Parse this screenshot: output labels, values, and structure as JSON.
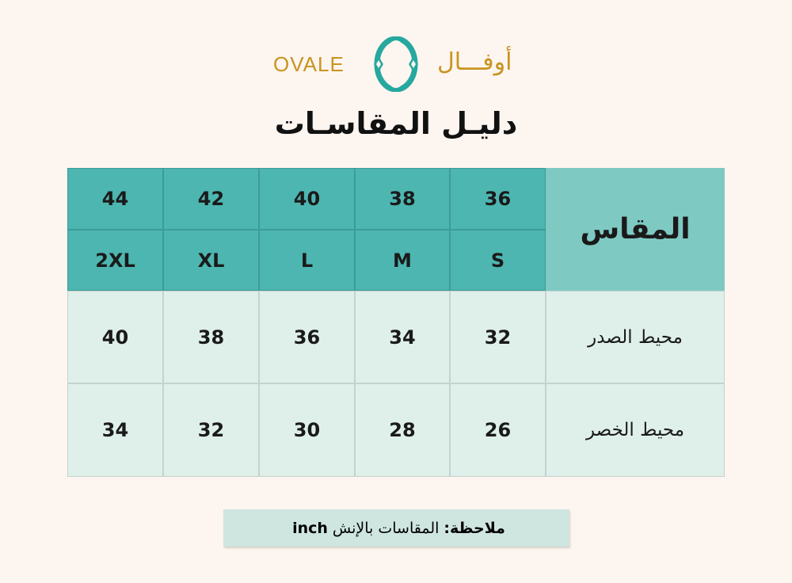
{
  "logo": {
    "latin": "OVALE",
    "arabic": "أوفـــال",
    "brand_color": "#c8941f",
    "mark_color": "#26a89e"
  },
  "title": "دليـل المقاسـات",
  "table": {
    "header_label": "المقاس",
    "numbers": [
      "36",
      "38",
      "40",
      "42",
      "44"
    ],
    "sizes": [
      "S",
      "M",
      "L",
      "XL",
      "2XL"
    ],
    "rows": [
      {
        "label": "محيط الصدر",
        "values": [
          "32",
          "34",
          "36",
          "38",
          "40"
        ]
      },
      {
        "label": "محيط الخصر",
        "values": [
          "26",
          "28",
          "30",
          "32",
          "34"
        ]
      }
    ]
  },
  "note": {
    "label": "ملاحظة:",
    "text": "المقاسات بالإنش",
    "unit": "inch"
  }
}
